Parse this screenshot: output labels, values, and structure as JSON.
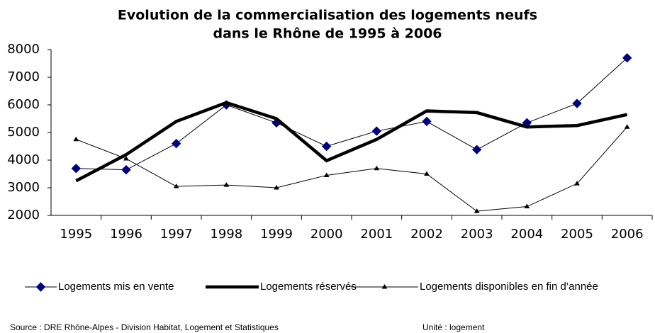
{
  "chart_data": {
    "type": "line",
    "title": [
      "Evolution de la commercialisation des logements neufs",
      "dans le Rhône de 1995 à 2006"
    ],
    "categories": [
      "1995",
      "1996",
      "1997",
      "1998",
      "1999",
      "2000",
      "2001",
      "2002",
      "2003",
      "2004",
      "2005",
      "2006"
    ],
    "series": [
      {
        "name": "Logements mis en vente",
        "color": "#000080",
        "values": [
          3700,
          3650,
          4600,
          6000,
          5350,
          4500,
          5050,
          5400,
          4380,
          5350,
          6050,
          7700
        ]
      },
      {
        "name": "Logements réservés",
        "color": "#000000",
        "values": [
          3250,
          4200,
          5400,
          6080,
          5500,
          3980,
          4750,
          5780,
          5720,
          5200,
          5250,
          5650
        ]
      },
      {
        "name": "Logements disponibles en  fin d’année",
        "color": "#000000",
        "values": [
          4750,
          4050,
          3050,
          3100,
          3000,
          3450,
          3700,
          3500,
          2150,
          2320,
          3150,
          5200
        ]
      }
    ],
    "ylim": [
      2000,
      8000
    ],
    "yticks": [
      2000,
      3000,
      4000,
      5000,
      6000,
      7000,
      8000
    ],
    "source": "Source : DRE Rhône-Alpes - Division Habitat, Logement et Statistiques",
    "unit": "Unité : logement"
  }
}
